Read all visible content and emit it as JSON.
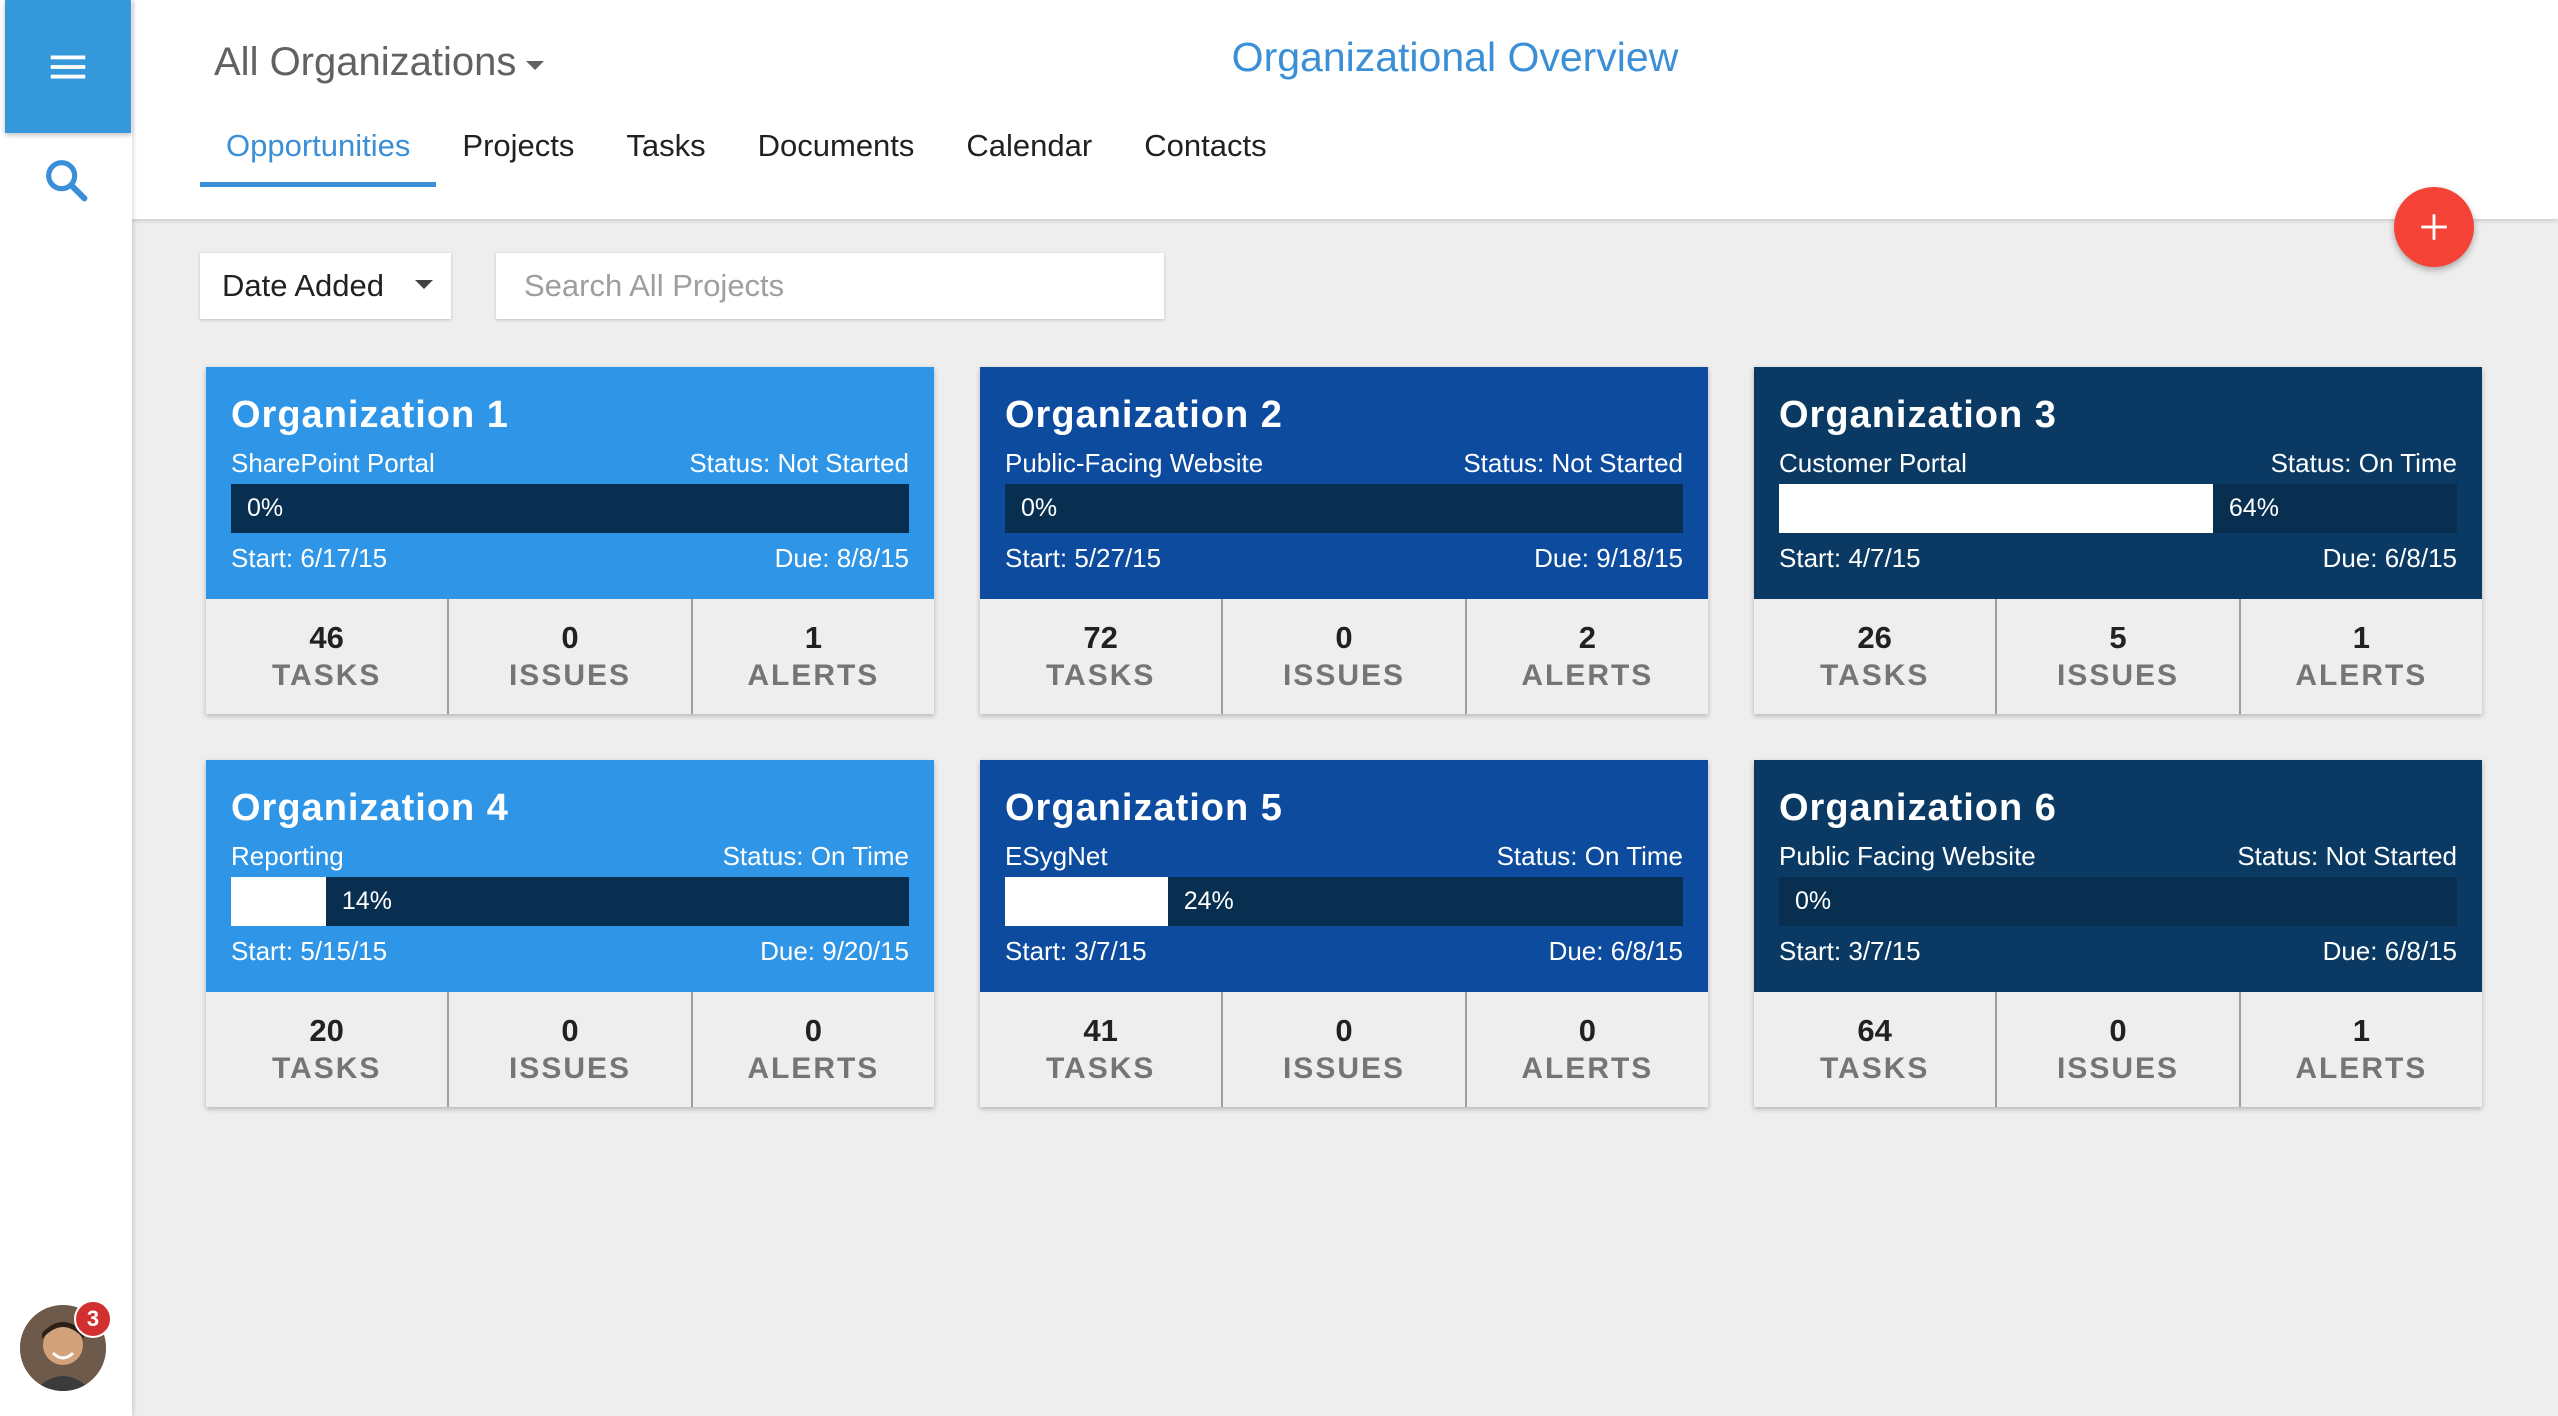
{
  "header": {
    "org_selector": "All Organizations",
    "title": "Organizational Overview",
    "tabs": [
      {
        "label": "Opportunities",
        "active": true
      },
      {
        "label": "Projects",
        "active": false
      },
      {
        "label": "Tasks",
        "active": false
      },
      {
        "label": "Documents",
        "active": false
      },
      {
        "label": "Calendar",
        "active": false
      },
      {
        "label": "Contacts",
        "active": false
      }
    ]
  },
  "sidebar": {
    "menu_icon": "hamburger-menu-icon",
    "search_icon": "search-icon",
    "notification_count": "3"
  },
  "fab": {
    "icon": "plus-icon"
  },
  "filters": {
    "sort_value": "Date Added",
    "search_placeholder": "Search All Projects"
  },
  "colors": {
    "accent": "#3a8fd6",
    "light_blue": "#2f95e6",
    "medium_blue": "#0d4b9f",
    "dark_blue": "#0a3a63",
    "fab": "#f44336"
  },
  "cards": [
    {
      "title": "Organization 1",
      "project": "SharePoint Portal",
      "status": "Status: Not Started",
      "progress": 0,
      "progress_label": "0%",
      "start": "Start: 6/17/15",
      "due": "Due: 8/8/15",
      "tasks": "46",
      "issues": "0",
      "alerts": "1",
      "color": "#2f95e6"
    },
    {
      "title": "Organization 2",
      "project": "Public-Facing Website",
      "status": "Status: Not Started",
      "progress": 0,
      "progress_label": "0%",
      "start": "Start: 5/27/15",
      "due": "Due: 9/18/15",
      "tasks": "72",
      "issues": "0",
      "alerts": "2",
      "color": "#0d4b9f"
    },
    {
      "title": "Organization 3",
      "project": "Customer Portal",
      "status": "Status: On Time",
      "progress": 64,
      "progress_label": "64%",
      "start": "Start: 4/7/15",
      "due": "Due: 6/8/15",
      "tasks": "26",
      "issues": "5",
      "alerts": "1",
      "color": "#0a3a63"
    },
    {
      "title": "Organization 4",
      "project": "Reporting",
      "status": "Status: On Time",
      "progress": 14,
      "progress_label": "14%",
      "start": "Start: 5/15/15",
      "due": "Due: 9/20/15",
      "tasks": "20",
      "issues": "0",
      "alerts": "0",
      "color": "#2f95e6"
    },
    {
      "title": "Organization 5",
      "project": "ESygNet",
      "status": "Status: On Time",
      "progress": 24,
      "progress_label": "24%",
      "start": "Start: 3/7/15",
      "due": "Due: 6/8/15",
      "tasks": "41",
      "issues": "0",
      "alerts": "0",
      "color": "#0d4b9f"
    },
    {
      "title": "Organization 6",
      "project": "Public Facing Website",
      "status": "Status: Not Started",
      "progress": 0,
      "progress_label": "0%",
      "start": "Start: 3/7/15",
      "due": "Due: 6/8/15",
      "tasks": "64",
      "issues": "0",
      "alerts": "1",
      "color": "#0a3a63"
    }
  ],
  "stat_labels": {
    "tasks": "TASKS",
    "issues": "ISSUES",
    "alerts": "ALERTS"
  }
}
